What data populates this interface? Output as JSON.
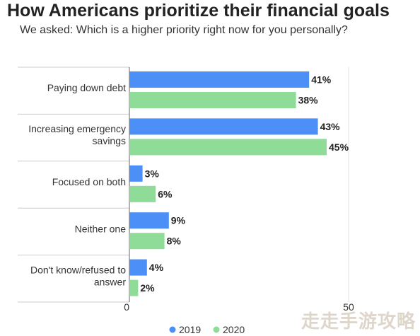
{
  "chart_data": {
    "type": "bar",
    "orientation": "horizontal",
    "title": "How Americans prioritize their financial goals",
    "subtitle": "We asked: Which is a higher priority right now for you personally?",
    "categories": [
      [
        "Paying down debt"
      ],
      [
        "Increasing emergency",
        "savings"
      ],
      [
        "Focused on both"
      ],
      [
        "Neither one"
      ],
      [
        "Don't know/refused to",
        "answer"
      ]
    ],
    "series": [
      {
        "name": "2019",
        "color": "#4b8ff7",
        "values": [
          41,
          43,
          3,
          9,
          4
        ],
        "labels": [
          "41%",
          "43%",
          "3%",
          "9%",
          "4%"
        ]
      },
      {
        "name": "2020",
        "color": "#8fdc98",
        "values": [
          38,
          45,
          6,
          8,
          2
        ],
        "labels": [
          "38%",
          "45%",
          "6%",
          "8%",
          "2%"
        ]
      }
    ],
    "xlim": [
      0,
      50
    ],
    "xticks": [
      "0",
      "50"
    ],
    "grid": true,
    "legend": "bottom-center"
  },
  "watermark": "走走手游攻略"
}
